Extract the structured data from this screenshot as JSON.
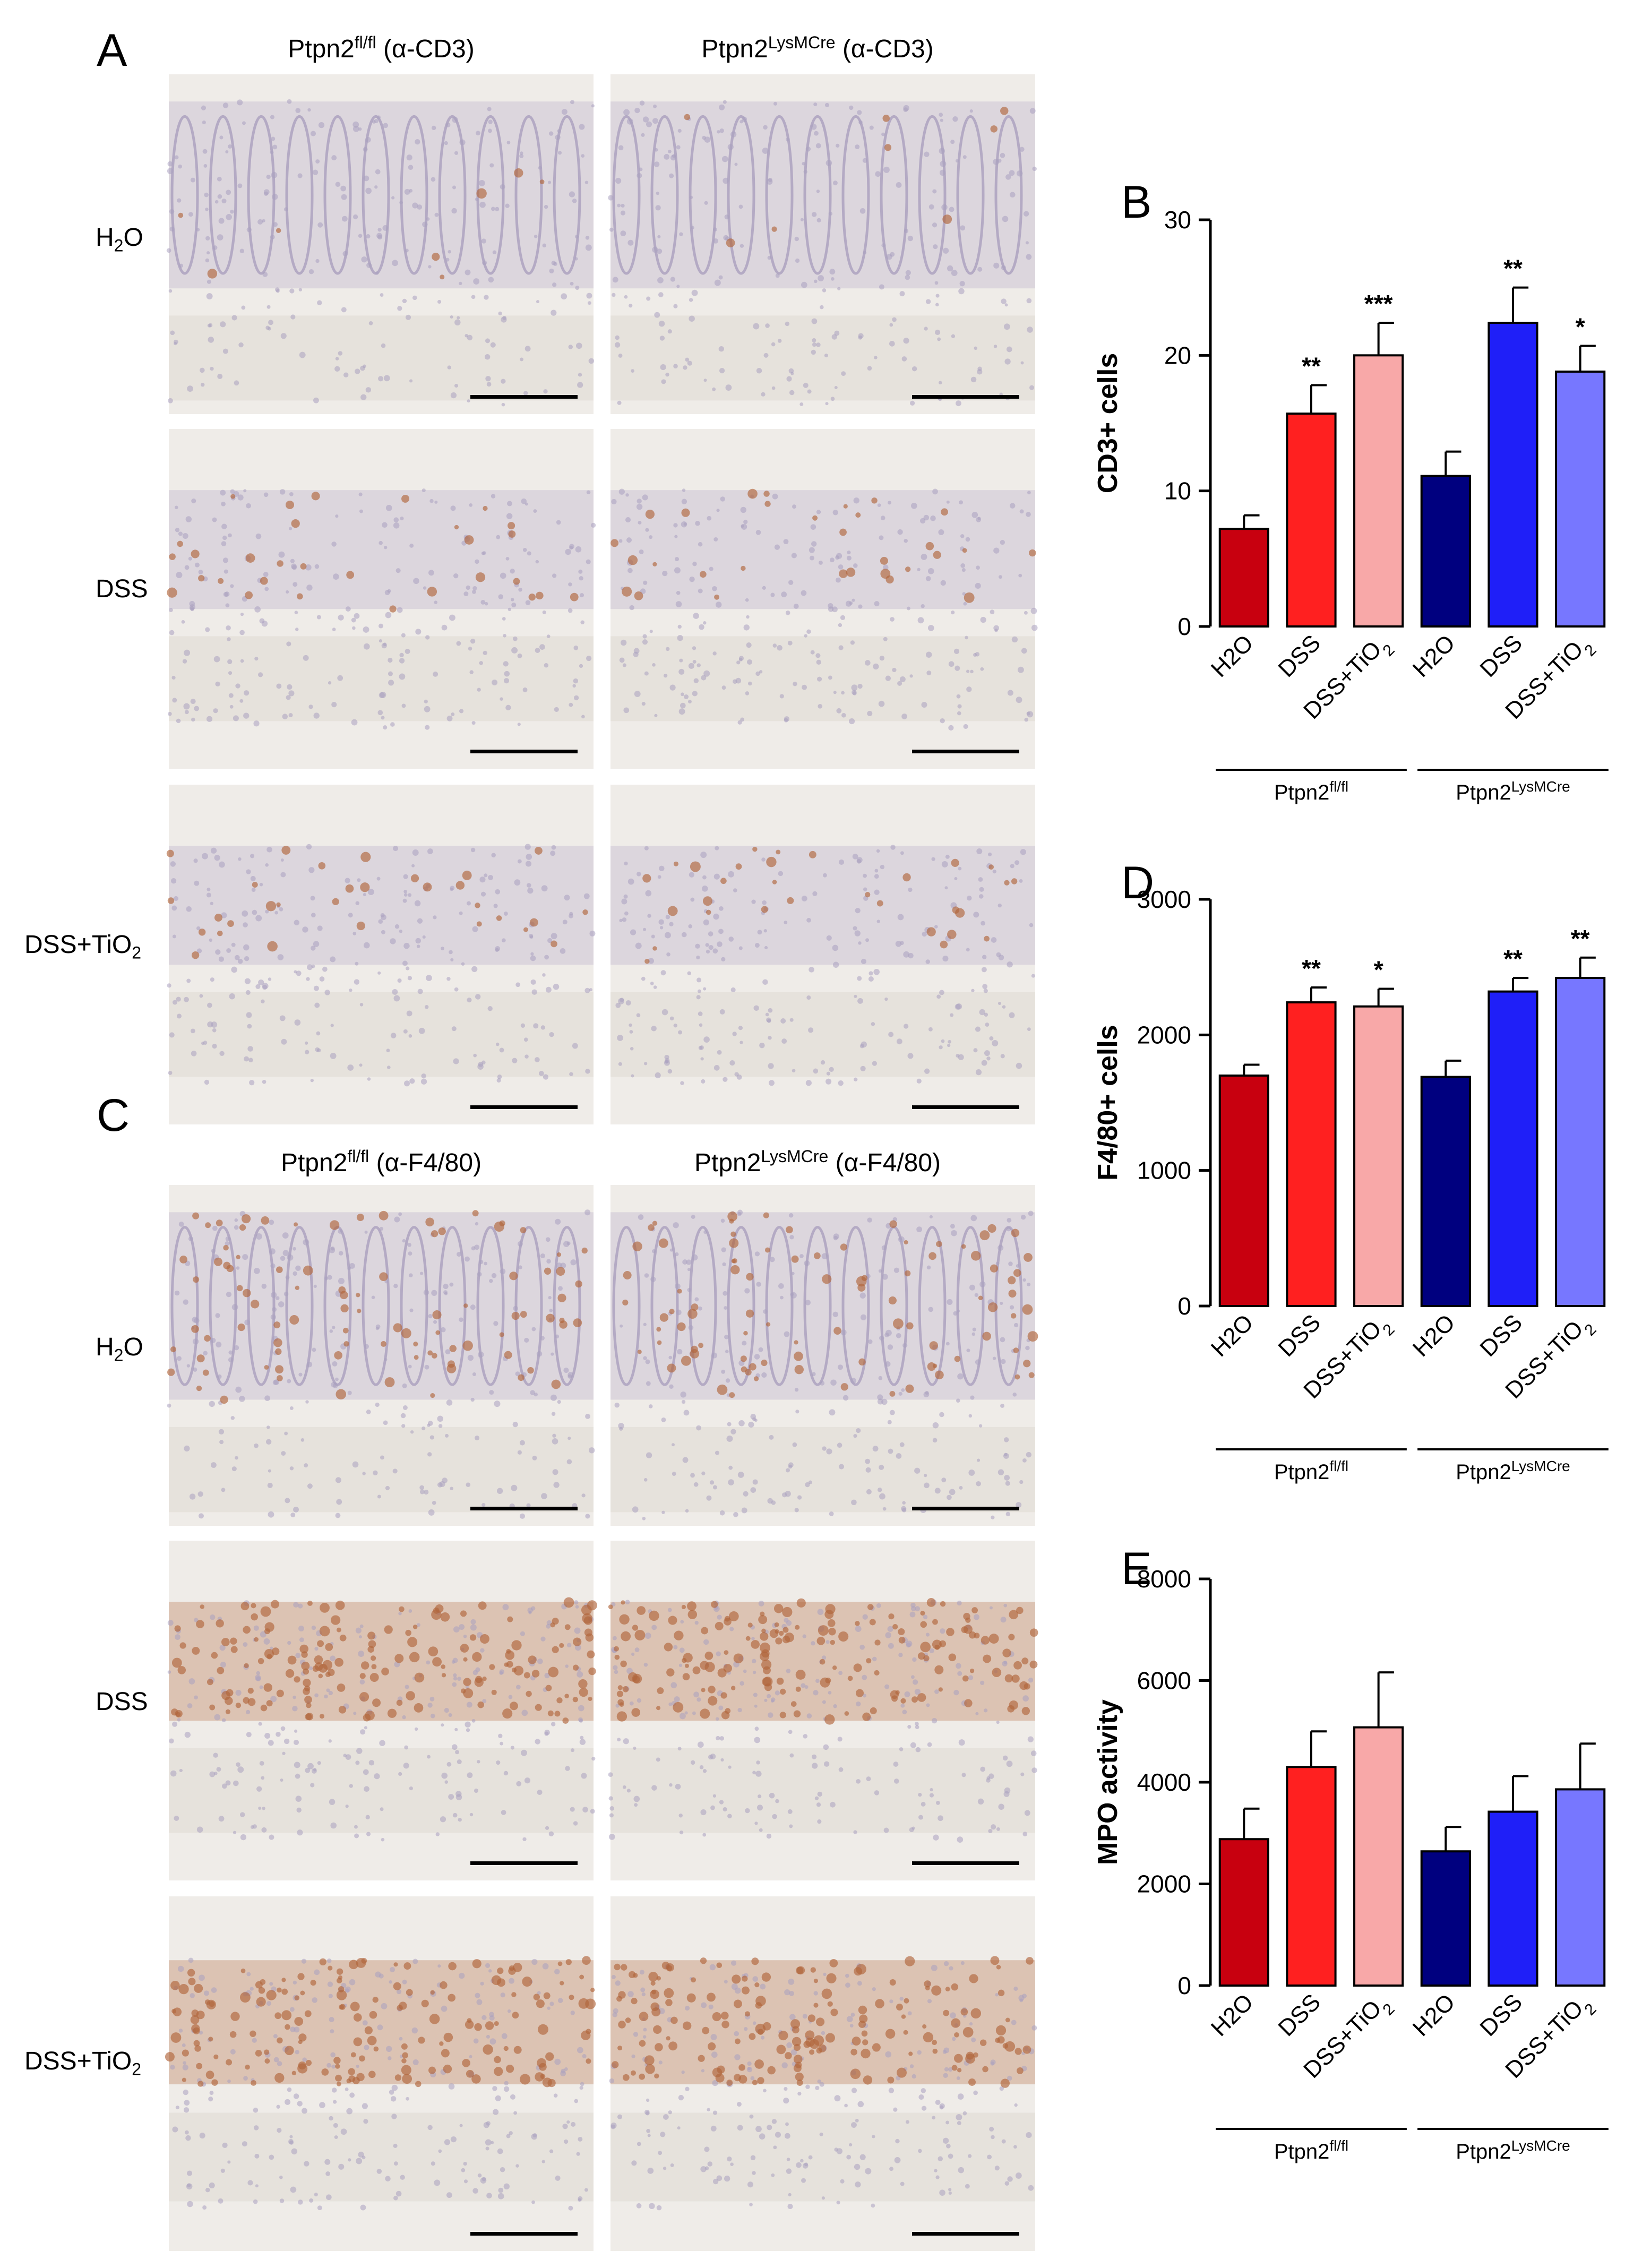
{
  "figure": {
    "panel_letters": [
      "A",
      "B",
      "C",
      "D",
      "E"
    ],
    "histology": {
      "cd3_headers": [
        {
          "base": "Ptpn2",
          "sup": "fl/fl",
          "suffix": " (α-CD3)"
        },
        {
          "base": "Ptpn2",
          "sup": "LysMCre",
          "suffix": " (α-CD3)"
        }
      ],
      "f480_headers": [
        {
          "base": "Ptpn2",
          "sup": "fl/fl",
          "suffix": " (α-F4/80)"
        },
        {
          "base": "Ptpn2",
          "sup": "LysMCre",
          "suffix": " (α-F4/80)"
        }
      ],
      "row_labels": [
        {
          "base": "H",
          "sub": "2",
          "rest": "O"
        },
        {
          "base": "DSS",
          "sub": "",
          "rest": ""
        },
        {
          "base": "DSS+TiO",
          "sub": "2",
          "rest": ""
        }
      ]
    }
  },
  "chart_data": [
    {
      "panel": "B",
      "type": "bar",
      "ylabel": "CD3+ cells",
      "ylim": [
        0,
        30
      ],
      "yticks": [
        0,
        10,
        20,
        30
      ],
      "categories": [
        "H2O",
        "DSS",
        "DSS+TiO2",
        "H2O",
        "DSS",
        "DSS+TiO2"
      ],
      "values": [
        7.2,
        15.7,
        20.0,
        11.1,
        22.4,
        18.8
      ],
      "errors": [
        1.0,
        2.1,
        2.4,
        1.8,
        2.6,
        1.9
      ],
      "significance": [
        "",
        "**",
        "***",
        "",
        "**",
        "*"
      ],
      "groups": [
        {
          "base": "Ptpn2",
          "sup": "fl/fl"
        },
        {
          "base": "Ptpn2",
          "sup": "LysMCre"
        }
      ],
      "colors": [
        "#c8000f",
        "#ff2020",
        "#f8a8a8",
        "#00007f",
        "#1f1ff8",
        "#7777ff"
      ]
    },
    {
      "panel": "D",
      "type": "bar",
      "ylabel": "F4/80+ cells",
      "ylim": [
        0,
        3000
      ],
      "yticks": [
        0,
        1000,
        2000,
        3000
      ],
      "categories": [
        "H2O",
        "DSS",
        "DSS+TiO2",
        "H2O",
        "DSS",
        "DSS+TiO2"
      ],
      "values": [
        1700,
        2240,
        2210,
        1690,
        2320,
        2420
      ],
      "errors": [
        80,
        110,
        130,
        120,
        100,
        150
      ],
      "significance": [
        "",
        "**",
        "*",
        "",
        "**",
        "**"
      ],
      "groups": [
        {
          "base": "Ptpn2",
          "sup": "fl/fl"
        },
        {
          "base": "Ptpn2",
          "sup": "LysMCre"
        }
      ],
      "colors": [
        "#c8000f",
        "#ff2020",
        "#f8a8a8",
        "#00007f",
        "#1f1ff8",
        "#7777ff"
      ]
    },
    {
      "panel": "E",
      "type": "bar",
      "ylabel": "MPO activity",
      "ylim": [
        0,
        8000
      ],
      "yticks": [
        0,
        2000,
        4000,
        6000,
        8000
      ],
      "categories": [
        "H2O",
        "DSS",
        "DSS+TiO2",
        "H2O",
        "DSS",
        "DSS+TiO2"
      ],
      "values": [
        2880,
        4300,
        5080,
        2640,
        3420,
        3860
      ],
      "errors": [
        600,
        700,
        1080,
        480,
        700,
        900
      ],
      "significance": [
        "",
        "",
        "",
        "",
        "",
        ""
      ],
      "groups": [
        {
          "base": "Ptpn2",
          "sup": "fl/fl"
        },
        {
          "base": "Ptpn2",
          "sup": "LysMCre"
        }
      ],
      "colors": [
        "#c8000f",
        "#ff2020",
        "#f8a8a8",
        "#00007f",
        "#1f1ff8",
        "#7777ff"
      ]
    }
  ]
}
